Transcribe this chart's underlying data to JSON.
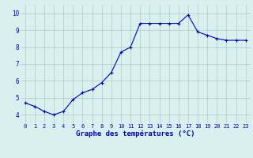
{
  "x": [
    0,
    1,
    2,
    3,
    4,
    5,
    6,
    7,
    8,
    9,
    10,
    11,
    12,
    13,
    14,
    15,
    16,
    17,
    18,
    19,
    20,
    21,
    22,
    23
  ],
  "y": [
    4.7,
    4.5,
    4.2,
    4.0,
    4.2,
    4.9,
    5.3,
    5.5,
    5.9,
    6.5,
    7.7,
    8.0,
    9.4,
    9.4,
    9.4,
    9.4,
    9.4,
    9.9,
    8.9,
    8.7,
    8.5,
    8.4,
    8.4,
    8.4
  ],
  "line_color": "#0000bb",
  "marker": "+",
  "marker_size": 3,
  "bg_color": "#d8f0ee",
  "grid_color": "#b0c8c8",
  "xlabel": "Graphe des températures (°C)",
  "tick_color": "#0000bb",
  "ylim": [
    3.5,
    10.5
  ],
  "xlim": [
    -0.5,
    23.5
  ],
  "yticks": [
    4,
    5,
    6,
    7,
    8,
    9,
    10
  ],
  "xtick_labels": [
    "0",
    "1",
    "2",
    "3",
    "4",
    "5",
    "6",
    "7",
    "8",
    "9",
    "10",
    "11",
    "12",
    "13",
    "14",
    "15",
    "16",
    "17",
    "18",
    "19",
    "20",
    "21",
    "22",
    "23"
  ],
  "tick_fontsize": 5.0,
  "ytick_fontsize": 5.5,
  "xlabel_fontsize": 6.5,
  "linewidth": 0.8,
  "bottom_bar_color": "#0000bb"
}
